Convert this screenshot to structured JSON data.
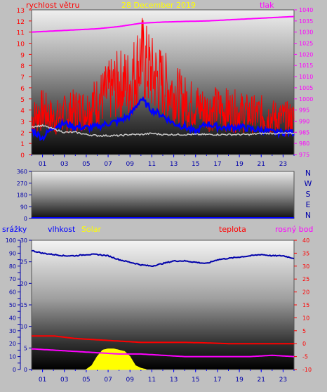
{
  "chart_data": [
    {
      "type": "line",
      "title": "28 December 2019",
      "left_axis_label": "rychlost větru",
      "right_axis_label": "tlak",
      "x_ticks": [
        "01",
        "03",
        "05",
        "07",
        "09",
        "11",
        "13",
        "15",
        "17",
        "19",
        "21",
        "23"
      ],
      "y_left_ticks": [
        "0",
        "1",
        "2",
        "3",
        "4",
        "5",
        "6",
        "7",
        "8",
        "9",
        "10",
        "11",
        "12",
        "13"
      ],
      "y_right_ticks": [
        "975",
        "980",
        "985",
        "990",
        "995",
        "1000",
        "1005",
        "1010",
        "1015",
        "1020",
        "1025",
        "1030",
        "1035",
        "1040"
      ],
      "ylim_left": [
        0,
        13
      ],
      "ylim_right": [
        975,
        1040
      ],
      "series": [
        {
          "name": "rychlost větru",
          "color": "#ff0000",
          "x": [
            0,
            1,
            2,
            3,
            4,
            5,
            6,
            7,
            8,
            9,
            10,
            11,
            12,
            13,
            14,
            15,
            16,
            17,
            18,
            19,
            20,
            21,
            22,
            23,
            24
          ],
          "values": [
            4,
            5,
            4,
            4.5,
            5,
            5,
            6,
            7,
            8,
            8,
            10.8,
            9,
            8,
            7,
            6,
            5.5,
            5,
            5.2,
            5,
            4.8,
            4.5,
            4.5,
            4.2,
            4,
            4
          ]
        },
        {
          "color": "#0000ff",
          "x": [
            0,
            1,
            2,
            3,
            4,
            5,
            6,
            7,
            8,
            9,
            10,
            11,
            12,
            13,
            14,
            15,
            16,
            17,
            18,
            19,
            20,
            21,
            22,
            23,
            24
          ],
          "values": [
            2.2,
            1.5,
            2.5,
            2.8,
            2.5,
            2.4,
            2.5,
            2.8,
            3,
            3.5,
            5,
            4,
            3.5,
            2.8,
            2.5,
            2,
            2.8,
            2.5,
            2.4,
            2.5,
            2.3,
            2.2,
            2,
            2,
            2
          ]
        },
        {
          "color": "#c8c8c8",
          "x": [
            0,
            1,
            2,
            3,
            4,
            5,
            6,
            7,
            8,
            9,
            10,
            11,
            12,
            13,
            14,
            15,
            16,
            17,
            18,
            19,
            20,
            21,
            22,
            23,
            24
          ],
          "values": [
            2.5,
            2.6,
            2.3,
            2.0,
            2.0,
            1.8,
            1.7,
            1.7,
            1.7,
            1.8,
            1.8,
            1.9,
            1.8,
            1.8,
            1.8,
            1.8,
            1.8,
            1.8,
            1.8,
            1.8,
            1.8,
            1.9,
            1.9,
            1.9,
            1.9
          ]
        },
        {
          "name": "tlak",
          "color": "#ff00ff",
          "axis": "right",
          "x": [
            0,
            2,
            4,
            6,
            8,
            10,
            12,
            14,
            16,
            18,
            20,
            22,
            24
          ],
          "values": [
            1030,
            1030.5,
            1031,
            1031.5,
            1032.5,
            1034,
            1034.5,
            1034.8,
            1035,
            1035.5,
            1036,
            1036.5,
            1037
          ]
        }
      ]
    },
    {
      "type": "line",
      "y_ticks": [
        "360",
        "270",
        "180",
        "90",
        "0"
      ],
      "ylim": [
        0,
        360
      ],
      "side_labels": [
        "N",
        "W",
        "S",
        "E",
        "N"
      ],
      "series": [
        {
          "color": "#0000ff",
          "x": [
            0,
            24
          ],
          "values": [
            0,
            0
          ]
        }
      ]
    },
    {
      "type": "line",
      "labels": {
        "srazky": "srážky",
        "vlhkost": "vlhkost",
        "solar": "Solar",
        "teplota": "teplota",
        "rosny_bod": "rosný bod"
      },
      "x_ticks": [
        "01",
        "03",
        "05",
        "07",
        "09",
        "11",
        "13",
        "15",
        "17",
        "19",
        "21",
        "23"
      ],
      "y_srazky_ticks": [
        "0",
        "5",
        "10",
        "15",
        "20",
        "25",
        "30",
        "35",
        "40",
        "45",
        "50",
        "55",
        "60",
        "65",
        "70",
        "75",
        "80",
        "85",
        "90",
        "95",
        "100"
      ],
      "y_srazky_labeled": [
        "0",
        "10",
        "20",
        "30",
        "40",
        "50",
        "60",
        "70",
        "80",
        "90",
        "100"
      ],
      "y_second_ticks": [
        "0",
        "5",
        "10",
        "15",
        "20",
        "25",
        "30"
      ],
      "y_right_ticks": [
        "-10",
        "-5",
        "0",
        "5",
        "10",
        "15",
        "20",
        "25",
        "30",
        "35",
        "40"
      ],
      "ylim_srazky": [
        0,
        100
      ],
      "ylim_right": [
        -10,
        40
      ],
      "series": [
        {
          "name": "vlhkost",
          "color": "#0000aa",
          "axis": "srazky",
          "x": [
            0,
            1,
            2,
            3,
            4,
            5,
            6,
            7,
            8,
            9,
            10,
            11,
            12,
            13,
            14,
            15,
            16,
            17,
            18,
            19,
            20,
            21,
            22,
            23,
            24
          ],
          "values": [
            92,
            90,
            89,
            88,
            88,
            89,
            89,
            88,
            85,
            83,
            81,
            80,
            82,
            84,
            84,
            83,
            82,
            85,
            86,
            87,
            88,
            89,
            88,
            88,
            86
          ]
        },
        {
          "name": "teplota",
          "color": "#ff0000",
          "axis": "right",
          "x": [
            0,
            2,
            4,
            6,
            8,
            10,
            12,
            14,
            16,
            18,
            20,
            22,
            24
          ],
          "values": [
            3,
            3,
            2,
            1.5,
            1,
            0.5,
            0.5,
            0.5,
            0.3,
            0,
            0,
            0,
            0
          ]
        },
        {
          "name": "rosný bod",
          "color": "#ff00ff",
          "axis": "right",
          "x": [
            0,
            2,
            4,
            6,
            8,
            10,
            12,
            14,
            16,
            18,
            20,
            22,
            24
          ],
          "values": [
            -2,
            -2.5,
            -3,
            -3.5,
            -4,
            -4,
            -4.5,
            -5,
            -5,
            -5,
            -5,
            -4.5,
            -5
          ]
        },
        {
          "name": "Solar",
          "color": "#ffff00",
          "type": "area",
          "axis": "srazky",
          "x": [
            5,
            5.5,
            6,
            6.5,
            7,
            7.5,
            8,
            8.5,
            9,
            9.5,
            10,
            10.5
          ],
          "values": [
            0,
            3,
            10,
            15,
            16,
            16,
            15,
            14,
            10,
            3,
            1,
            0
          ]
        }
      ]
    }
  ]
}
